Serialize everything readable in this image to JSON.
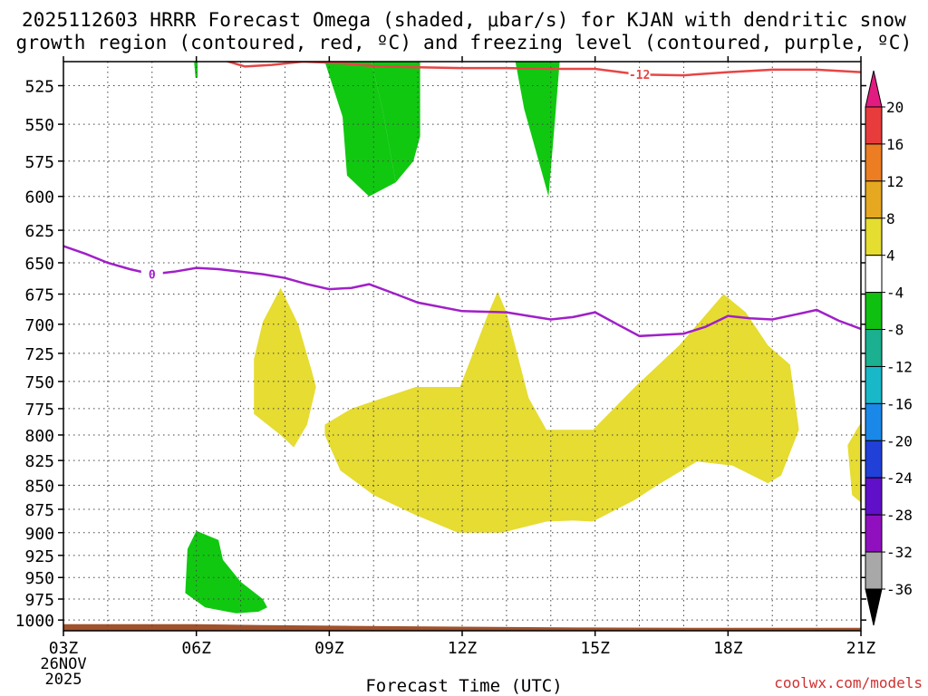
{
  "chart_data": {
    "type": "heatmap",
    "title_line1": "2025112603 HRRR Forecast Omega (shaded, μbar/s) for KJAN with dendritic snow",
    "title_line2": "growth region (contoured, red, ºC) and freezing level (contoured, purple, ºC)",
    "xlabel": "Forecast Time (UTC)",
    "credit": "coolwx.com/models",
    "x_range_hours": [
      3,
      21
    ],
    "x_ticks": [
      {
        "hour": 3,
        "label": "03Z",
        "label2": "26NOV",
        "label3": "2025"
      },
      {
        "hour": 6,
        "label": "06Z"
      },
      {
        "hour": 9,
        "label": "09Z"
      },
      {
        "hour": 12,
        "label": "12Z"
      },
      {
        "hour": 15,
        "label": "15Z"
      },
      {
        "hour": 18,
        "label": "18Z"
      },
      {
        "hour": 21,
        "label": "21Z"
      }
    ],
    "y_axis": {
      "scale": "log",
      "reversed": true,
      "range": [
        1013,
        510
      ],
      "ticks": [
        525,
        550,
        575,
        600,
        625,
        650,
        675,
        700,
        725,
        750,
        775,
        800,
        825,
        850,
        875,
        900,
        925,
        950,
        975,
        1000
      ]
    },
    "grid": true,
    "colorbar": {
      "labels": [
        "20",
        "16",
        "12",
        "8",
        "4",
        "-4",
        "-8",
        "-12",
        "-16",
        "-20",
        "-24",
        "-28",
        "-32",
        "-36"
      ],
      "colors": [
        "#e21b80",
        "#e83c3c",
        "#ec7d22",
        "#e5a820",
        "#e5dd30",
        "#ffffff",
        "#10c010",
        "#1ab090",
        "#18b8c8",
        "#1a88e8",
        "#2040d8",
        "#6010c8",
        "#9010c0",
        "#a8a8a8",
        "#000000"
      ]
    },
    "omega_regions": [
      {
        "color": "#e6dc32",
        "points": [
          [
            10.95,
            755
          ],
          [
            11.95,
            755
          ],
          [
            12.6,
            690
          ],
          [
            12.8,
            673
          ],
          [
            13,
            690
          ],
          [
            13.5,
            765
          ],
          [
            13.9,
            795
          ],
          [
            14.95,
            795
          ],
          [
            15.9,
            755
          ],
          [
            16.9,
            718
          ],
          [
            17.9,
            675
          ],
          [
            18.4,
            690
          ],
          [
            18.9,
            718
          ],
          [
            19.4,
            735
          ],
          [
            19.6,
            795
          ],
          [
            19.2,
            840
          ],
          [
            18.9,
            848
          ],
          [
            18.1,
            830
          ],
          [
            17.3,
            826
          ],
          [
            16.4,
            850
          ],
          [
            15.9,
            865
          ],
          [
            14.95,
            888
          ],
          [
            14.5,
            887
          ],
          [
            13.9,
            888
          ],
          [
            12.9,
            900
          ],
          [
            11.9,
            900
          ],
          [
            10.9,
            880
          ],
          [
            10.0,
            860
          ],
          [
            9.25,
            835
          ],
          [
            8.9,
            800
          ],
          [
            8.9,
            790
          ],
          [
            9.5,
            775
          ]
        ]
      },
      {
        "color": "#e6dc32",
        "points": [
          [
            7.9,
            670
          ],
          [
            8.3,
            700
          ],
          [
            8.6,
            740
          ],
          [
            8.7,
            755
          ],
          [
            8.5,
            790
          ],
          [
            8.2,
            812
          ],
          [
            7.9,
            800
          ],
          [
            7.3,
            780
          ],
          [
            7.3,
            730
          ],
          [
            7.5,
            698
          ]
        ]
      },
      {
        "color": "#e6dc32",
        "points": [
          [
            20.9,
            795
          ],
          [
            21.05,
            785
          ],
          [
            21.05,
            870
          ],
          [
            20.8,
            860
          ],
          [
            20.7,
            810
          ]
        ]
      },
      {
        "color": "#10c810",
        "points": [
          [
            8.4,
            510
          ],
          [
            9.95,
            510
          ],
          [
            10.2,
            540
          ],
          [
            10.5,
            590
          ],
          [
            10.9,
            575
          ],
          [
            11.05,
            558
          ],
          [
            11.05,
            510
          ],
          [
            9.6,
            510
          ],
          [
            9.6,
            510
          ]
        ]
      },
      {
        "color": "#10c810",
        "points": [
          [
            9.6,
            510
          ],
          [
            8.9,
            510
          ],
          [
            9.3,
            545
          ],
          [
            9.4,
            585
          ],
          [
            9.9,
            600
          ],
          [
            10.5,
            590
          ],
          [
            10.2,
            540
          ],
          [
            9.95,
            510
          ]
        ]
      },
      {
        "color": "#10c810",
        "points": [
          [
            13.2,
            510
          ],
          [
            14.2,
            510
          ],
          [
            14.1,
            545
          ],
          [
            13.95,
            600
          ],
          [
            13.4,
            540
          ]
        ]
      },
      {
        "color": "#10c810",
        "points": [
          [
            6.0,
            898
          ],
          [
            6.5,
            908
          ],
          [
            6.6,
            930
          ],
          [
            7.0,
            955
          ],
          [
            7.5,
            975
          ],
          [
            7.6,
            985
          ],
          [
            7.4,
            990
          ],
          [
            6.9,
            992
          ],
          [
            6.2,
            985
          ],
          [
            5.75,
            968
          ],
          [
            5.8,
            918
          ]
        ]
      },
      {
        "color": "#10c810",
        "points": [
          [
            5.95,
            510
          ],
          [
            6.03,
            510
          ],
          [
            6.03,
            520
          ],
          [
            5.98,
            520
          ]
        ]
      }
    ],
    "terrain_color": "#a0522d",
    "terrain": [
      [
        3,
        1005
      ],
      [
        6,
        1005
      ],
      [
        7.5,
        1006
      ],
      [
        9.5,
        1007
      ],
      [
        12,
        1008
      ],
      [
        14.8,
        1009
      ],
      [
        18,
        1009.5
      ],
      [
        21,
        1009.5
      ]
    ],
    "dgz_contour": {
      "label": "-12",
      "color": "#e84545",
      "points": [
        [
          6.6,
          509
        ],
        [
          7.1,
          513
        ],
        [
          7.7,
          512
        ],
        [
          8.4,
          510
        ],
        [
          9.3,
          511
        ],
        [
          10.1,
          513
        ],
        [
          11,
          513.5
        ],
        [
          12,
          514
        ],
        [
          13,
          514
        ],
        [
          14,
          514.5
        ],
        [
          15,
          514.5
        ],
        [
          16,
          518
        ],
        [
          17,
          518.5
        ],
        [
          18,
          516.5
        ],
        [
          19,
          515
        ],
        [
          20,
          515
        ],
        [
          21,
          516.5
        ]
      ]
    },
    "freezing_contour": {
      "label": "0",
      "color": "#a020c8",
      "points": [
        [
          3,
          637
        ],
        [
          3.5,
          643
        ],
        [
          4,
          650
        ],
        [
          4.5,
          655
        ],
        [
          5,
          659
        ],
        [
          5.5,
          657
        ],
        [
          6,
          654
        ],
        [
          6.5,
          655
        ],
        [
          7,
          657
        ],
        [
          7.5,
          659
        ],
        [
          8,
          662
        ],
        [
          8.5,
          667
        ],
        [
          9,
          671
        ],
        [
          9.5,
          670
        ],
        [
          9.9,
          667
        ],
        [
          10.5,
          675
        ],
        [
          11,
          682
        ],
        [
          12,
          689
        ],
        [
          13,
          690
        ],
        [
          13.5,
          693
        ],
        [
          14,
          696
        ],
        [
          14.5,
          694
        ],
        [
          15,
          690
        ],
        [
          15.5,
          700
        ],
        [
          16,
          710
        ],
        [
          16.5,
          709
        ],
        [
          17,
          708
        ],
        [
          17.5,
          702
        ],
        [
          18,
          693
        ],
        [
          18.5,
          695
        ],
        [
          19,
          696
        ],
        [
          19.5,
          692
        ],
        [
          20,
          688
        ],
        [
          20.5,
          697
        ],
        [
          21,
          704
        ]
      ]
    }
  }
}
